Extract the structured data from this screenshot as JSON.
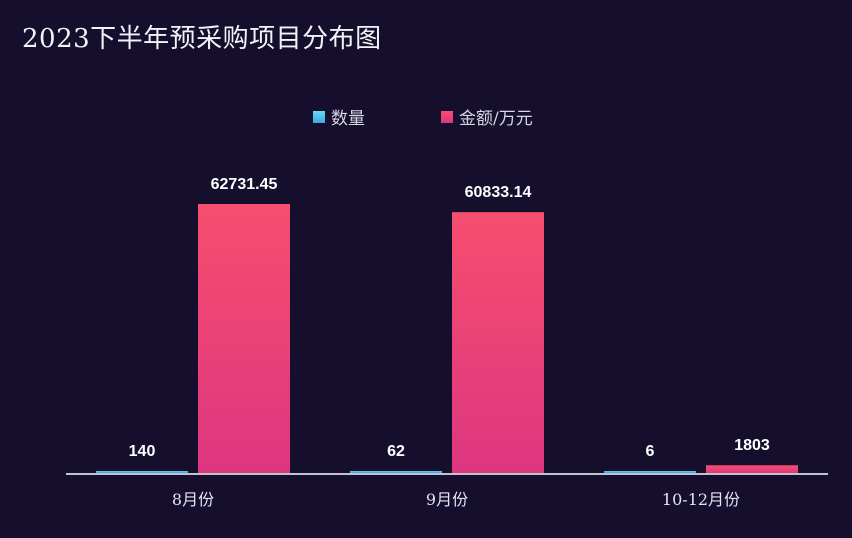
{
  "title": "2023下半年预采购项目分布图",
  "colors": {
    "background": "#150e2d",
    "series_count_top": "#5fd0f0",
    "series_count_bottom": "#3a9fe0",
    "series_amount_top": "#f64e6e",
    "series_amount_bottom": "#dd3680",
    "axis": "#ffffff"
  },
  "legend": [
    {
      "label": "数量",
      "color": "#4cc3ee"
    },
    {
      "label": "金额/万元",
      "color": "#ee4173"
    }
  ],
  "chart_data": {
    "type": "bar",
    "title": "2023下半年预采购项目分布图",
    "categories": [
      "8月份",
      "9月份",
      "10-12月份"
    ],
    "series": [
      {
        "name": "数量",
        "values": [
          140,
          62,
          6
        ],
        "labels": [
          "140",
          "62",
          "6"
        ]
      },
      {
        "name": "金额/万元",
        "values": [
          62731.45,
          60833.14,
          1803
        ],
        "labels": [
          "62731.45",
          "60833.14",
          "1803"
        ]
      }
    ],
    "ylim": [
      0,
      62731.45
    ],
    "grid": false,
    "legend_position": "top-center"
  }
}
